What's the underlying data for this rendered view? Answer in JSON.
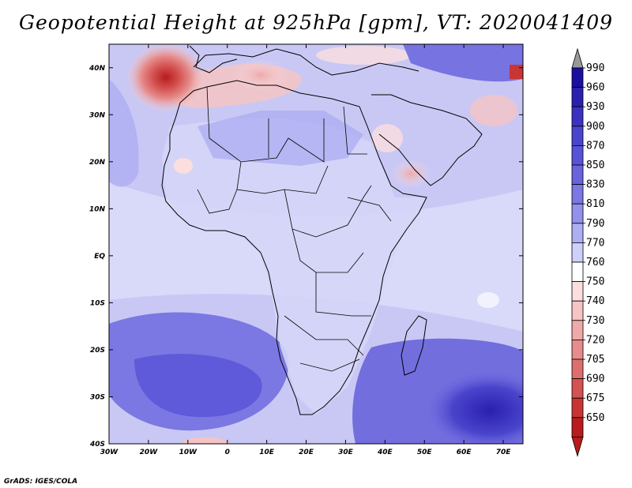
{
  "title": "Geopotential Height at 925hPa [gpm], VT: 2020041409",
  "footer": "GrADS: IGES/COLA",
  "axes": {
    "lat_labels": [
      "40N",
      "30N",
      "20N",
      "10N",
      "EQ",
      "10S",
      "20S",
      "30S",
      "40S"
    ],
    "lon_labels": [
      "30W",
      "20W",
      "10W",
      "0",
      "10E",
      "20E",
      "30E",
      "40E",
      "50E",
      "60E",
      "70E"
    ],
    "lon_range": [
      -30,
      75
    ],
    "lat_range": [
      -40,
      45
    ]
  },
  "colorbar": {
    "levels": [
      "990",
      "960",
      "930",
      "900",
      "870",
      "850",
      "830",
      "810",
      "790",
      "770",
      "760",
      "750",
      "740",
      "730",
      "720",
      "705",
      "690",
      "675",
      "650"
    ],
    "colors": [
      "#1a0f9e",
      "#2a20b0",
      "#3b32c2",
      "#4a44cc",
      "#5852d6",
      "#6964dc",
      "#7b78e3",
      "#9391ea",
      "#aeaef2",
      "#cfd0f9",
      "#ffffff",
      "#fbdede",
      "#f6c4c4",
      "#eea9a9",
      "#e68c8c",
      "#de6e6e",
      "#d45252",
      "#c93535",
      "#b81c1c"
    ],
    "top_arrow": "#999999",
    "bottom_arrow": "#b81c1c"
  },
  "field": {
    "background": "#c9c8f5",
    "regions": [
      {
        "name": "south-atlantic-low-band",
        "color": "#7b78e3"
      },
      {
        "name": "south-indian-ocean-high",
        "color": "#3b32c2"
      },
      {
        "name": "azores-high",
        "color": "#c93535"
      },
      {
        "name": "north-africa-warm",
        "color": "#f6c4c4"
      },
      {
        "name": "arabia-warm",
        "color": "#eea9a9"
      },
      {
        "name": "equatorial-belt",
        "color": "#dcdcfa"
      }
    ]
  }
}
